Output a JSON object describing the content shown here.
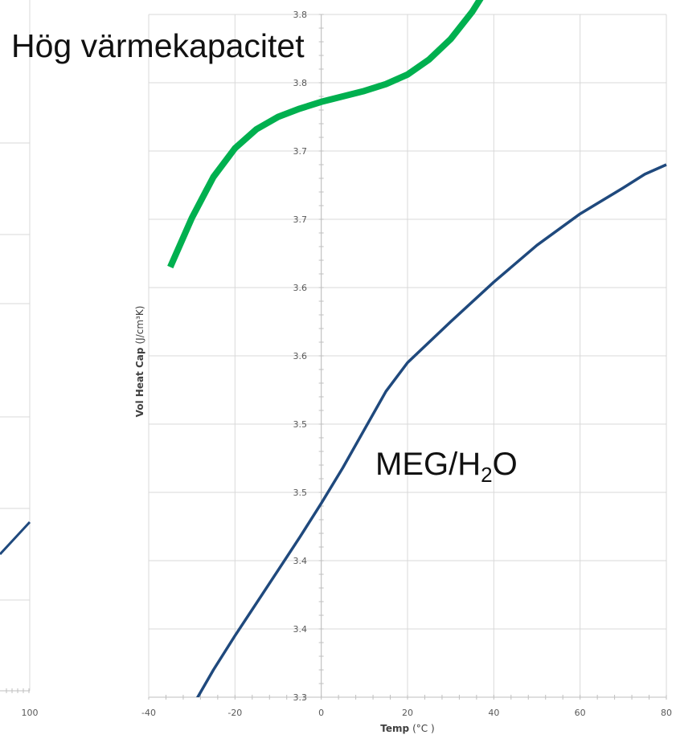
{
  "colors": {
    "green_series": "#00b04f",
    "blue_series": "#1f497d",
    "grid": "#d9d9d9",
    "axis": "#bfbfbf"
  },
  "annotations": {
    "title": "Hög värmekapacitet",
    "series_main": "MEG/H",
    "series_sub": "2",
    "series_end": "O"
  },
  "chart_data": [
    {
      "type": "line",
      "panel": "left-partial",
      "x_ticks": [
        "100"
      ],
      "series": [
        {
          "color": "#1f497d",
          "x": [
            90,
            100
          ],
          "y": [
            0.34,
            0.42
          ]
        }
      ]
    },
    {
      "type": "line",
      "panel": "main",
      "xlabel": "Temp",
      "xlabel_unit": "(°C )",
      "ylabel": "Vol Heat Cap",
      "ylabel_unit": "(J/cm³K)",
      "xlim": [
        -40,
        80
      ],
      "ylim": [
        3.3,
        3.8
      ],
      "x_ticks": [
        "-40",
        "-20",
        "0",
        "20",
        "40",
        "60",
        "80"
      ],
      "y_ticks": [
        "3.3",
        "3.4",
        "3.4",
        "3.5",
        "3.5",
        "3.6",
        "3.6",
        "3.7",
        "3.7",
        "3.8",
        "3.8"
      ],
      "grid": true,
      "series": [
        {
          "color": "#00b04f",
          "x": [
            -35,
            -30,
            -25,
            -20,
            -15,
            -10,
            -5,
            0,
            5,
            10,
            15,
            20,
            25,
            30,
            35,
            38
          ],
          "y": [
            3.615,
            3.651,
            3.681,
            3.702,
            3.716,
            3.725,
            3.731,
            3.736,
            3.74,
            3.744,
            3.749,
            3.756,
            3.767,
            3.782,
            3.802,
            3.817
          ]
        },
        {
          "color": "#1f497d",
          "x": [
            -29,
            -25,
            -20,
            -15,
            -10,
            -5,
            0,
            5,
            10,
            15,
            20,
            30,
            40,
            50,
            60,
            70,
            75,
            80
          ],
          "y": [
            3.298,
            3.32,
            3.345,
            3.369,
            3.393,
            3.417,
            3.442,
            3.468,
            3.496,
            3.524,
            3.545,
            3.575,
            3.604,
            3.631,
            3.654,
            3.673,
            3.683,
            3.69
          ]
        }
      ]
    }
  ]
}
